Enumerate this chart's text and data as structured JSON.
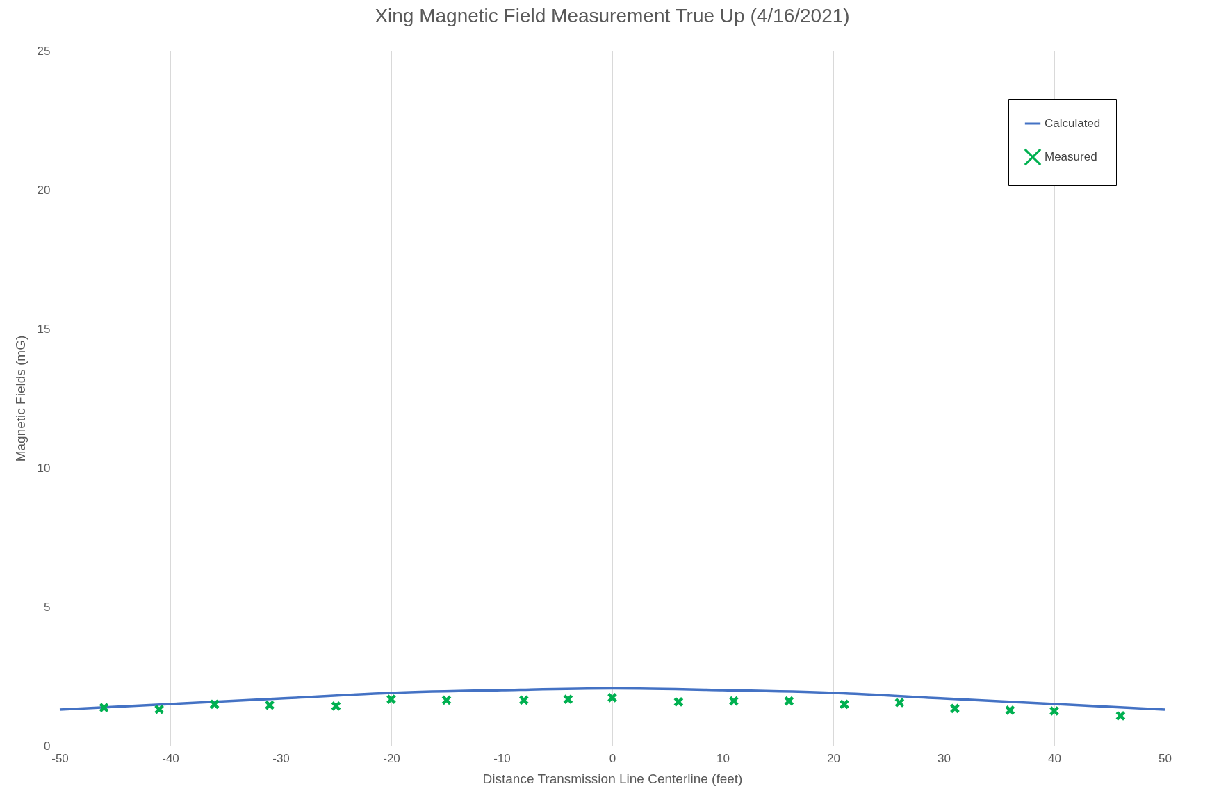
{
  "chart_data": {
    "type": "line",
    "title": "Xing Magnetic Field Measurement True Up (4/16/2021)",
    "xlabel": "Distance Transmission Line Centerline (feet)",
    "ylabel": "Magnetic Fields (mG)",
    "xlim": [
      -50,
      50
    ],
    "xticks": [
      -50,
      -40,
      -30,
      -20,
      -10,
      0,
      10,
      20,
      30,
      40,
      50
    ],
    "ylim": [
      0,
      25
    ],
    "yticks": [
      0,
      5,
      10,
      15,
      20,
      25
    ],
    "grid": true,
    "legend": "top right",
    "series": [
      {
        "name": "Calculated",
        "color": "#4472c4",
        "x": [
          -50,
          -40,
          -30,
          -20,
          -10,
          0,
          10,
          20,
          30,
          40,
          50
        ],
        "values": [
          1.3,
          1.5,
          1.7,
          1.9,
          2.0,
          2.06,
          2.0,
          1.9,
          1.7,
          1.5,
          1.3
        ]
      },
      {
        "name": "Measured",
        "type": "scatter",
        "marker": "cross",
        "color": "#00b050",
        "x": [
          -46,
          -41,
          -36,
          -31,
          -25,
          -20,
          -15,
          -8,
          -4,
          0,
          6,
          11,
          16,
          21,
          26,
          31,
          36,
          40,
          46
        ],
        "values": [
          1.37,
          1.31,
          1.49,
          1.46,
          1.43,
          1.67,
          1.64,
          1.64,
          1.67,
          1.73,
          1.58,
          1.61,
          1.61,
          1.49,
          1.55,
          1.34,
          1.28,
          1.25,
          1.08
        ]
      }
    ]
  }
}
